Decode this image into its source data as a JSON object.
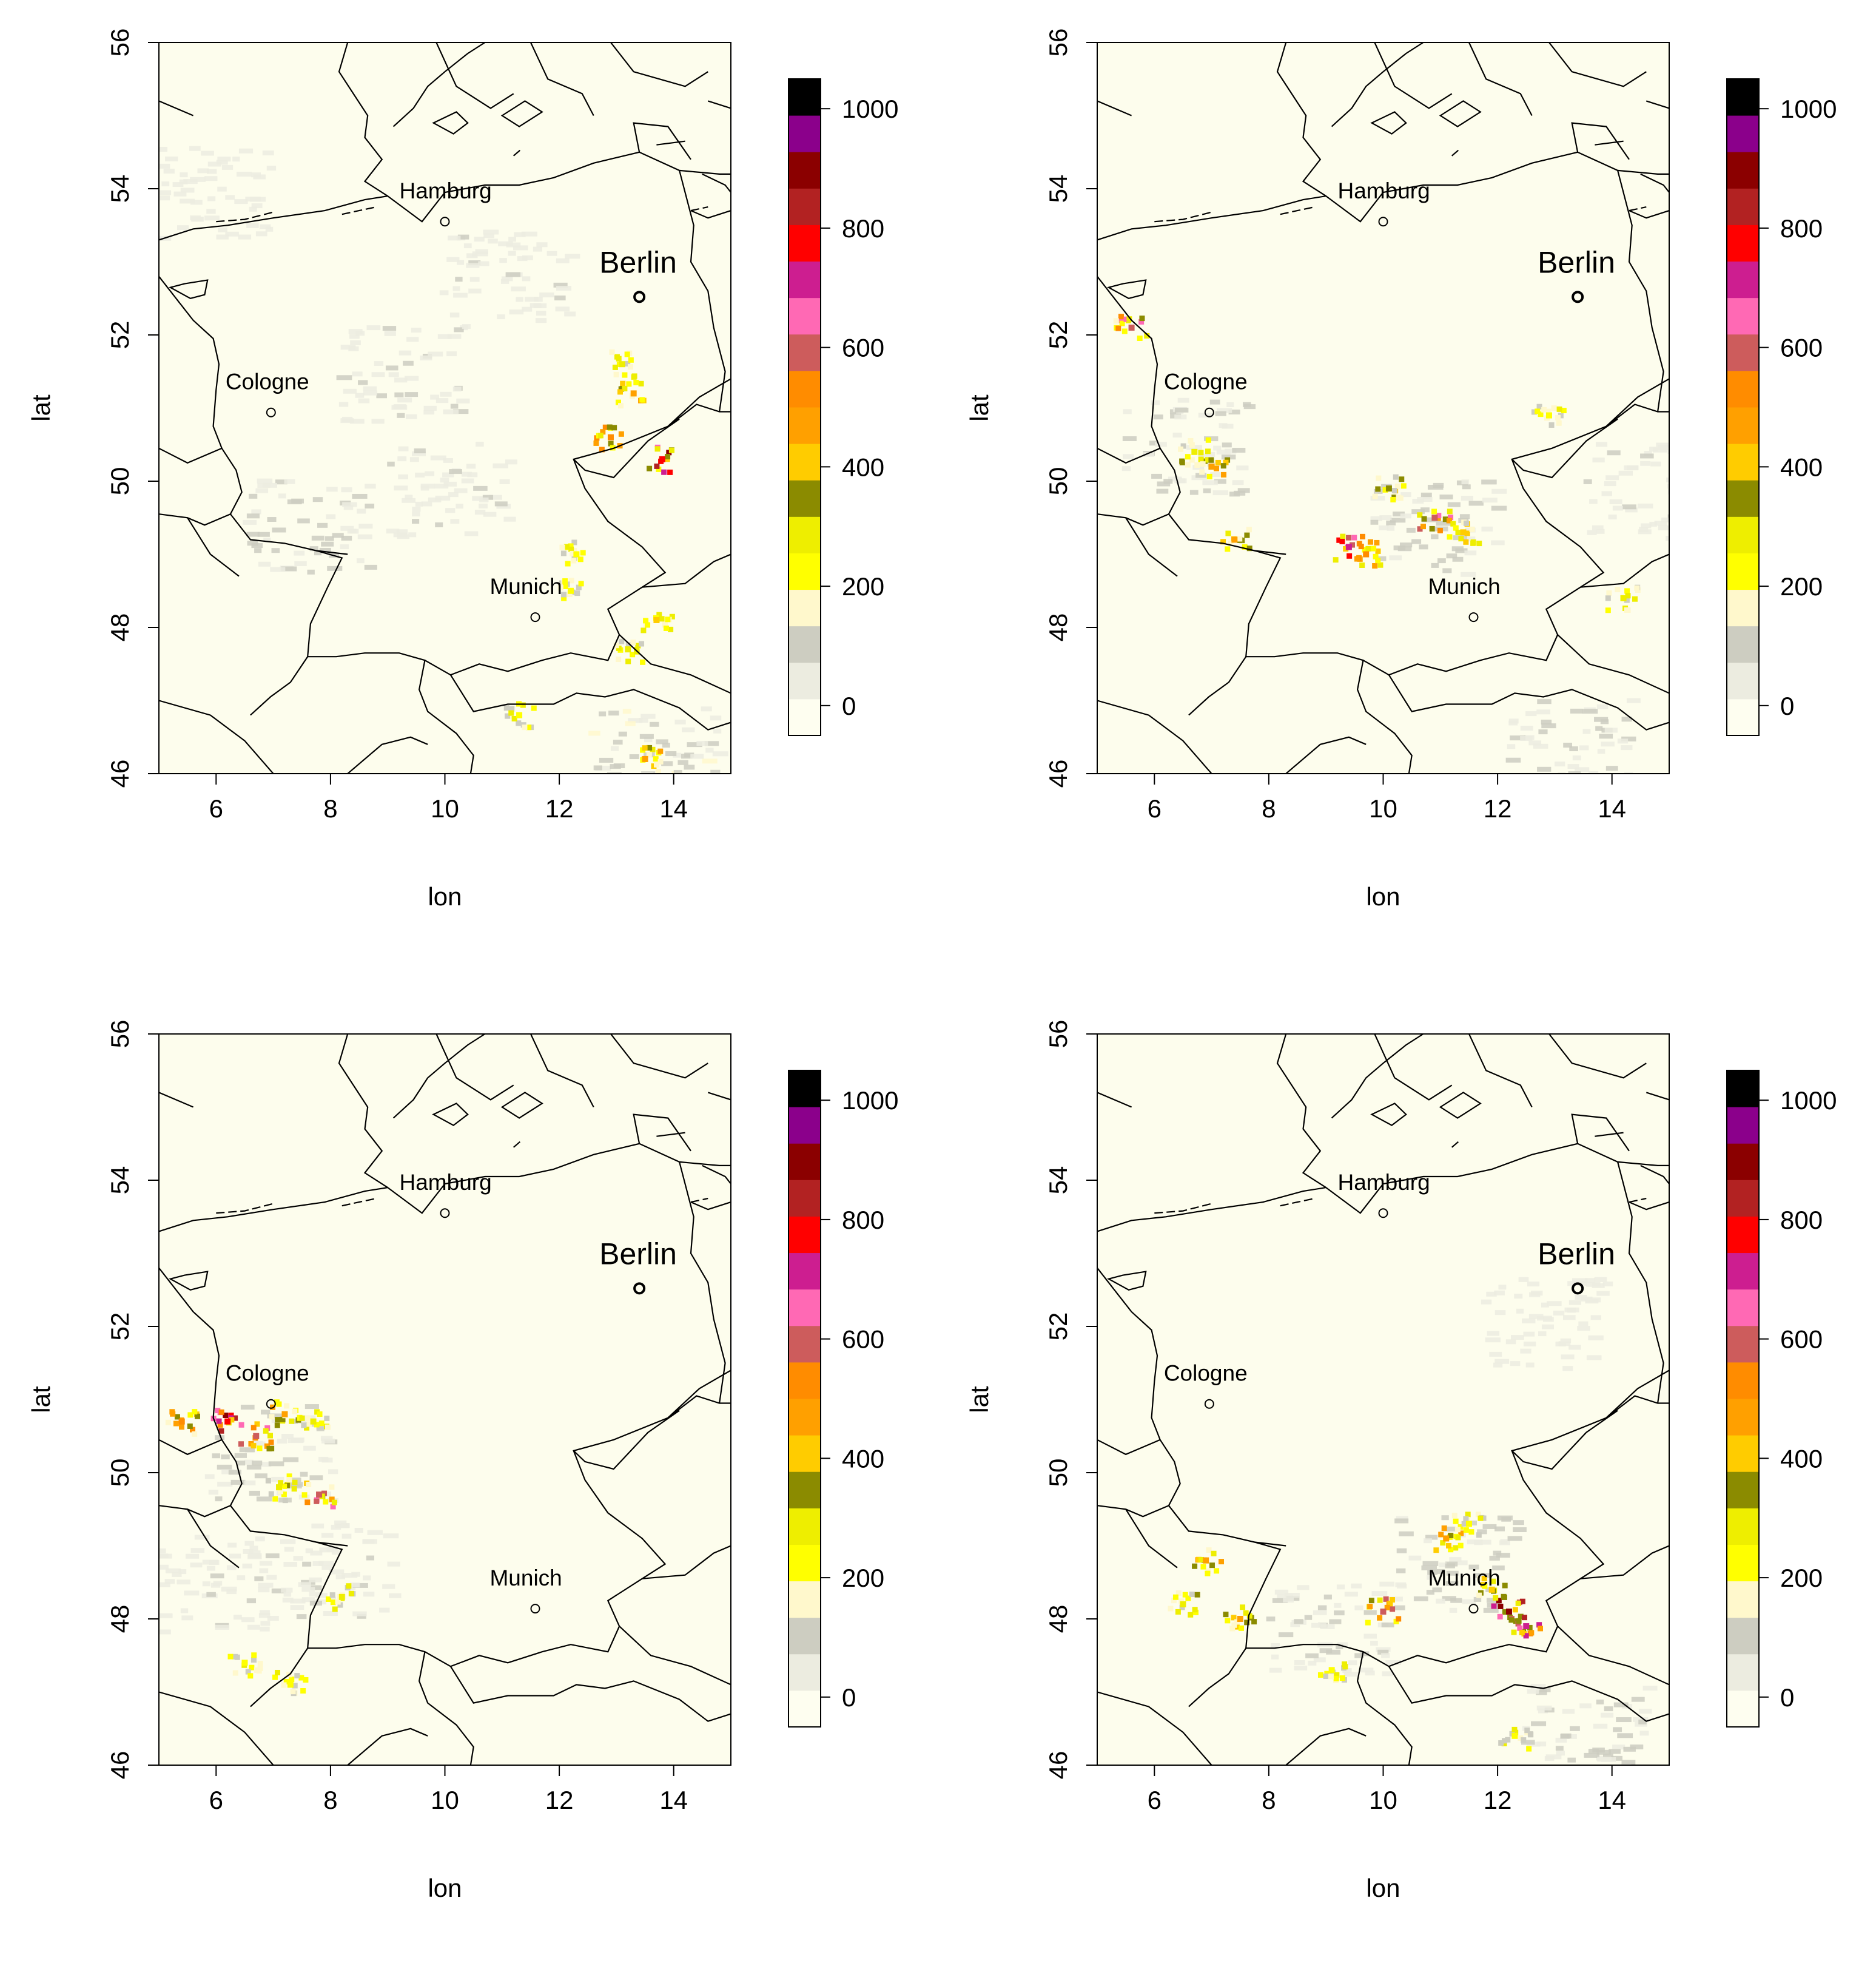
{
  "chart_data": [
    {
      "type": "heatmap",
      "xlabel": "lon",
      "ylabel": "lat",
      "xlim": [
        5,
        15
      ],
      "ylim": [
        46,
        56
      ],
      "x_ticks": [
        "6",
        "8",
        "10",
        "12",
        "14"
      ],
      "y_ticks": [
        "46",
        "48",
        "50",
        "52",
        "54",
        "56"
      ],
      "colorbar": {
        "ticks": [
          "0",
          "200",
          "400",
          "600",
          "800",
          "1000"
        ],
        "range": [
          -50,
          1050
        ]
      },
      "cities": [
        {
          "name": "Hamburg",
          "lon": 10.0,
          "lat": 53.55,
          "large": false
        },
        {
          "name": "Berlin",
          "lon": 13.4,
          "lat": 52.52,
          "large": true
        },
        {
          "name": "Cologne",
          "lon": 6.96,
          "lat": 50.94,
          "large": false
        },
        {
          "name": "Munich",
          "lon": 11.58,
          "lat": 48.14,
          "large": false
        }
      ],
      "hotspots": [
        {
          "lon": 13.1,
          "lat": 51.6,
          "value": 300
        },
        {
          "lon": 13.3,
          "lat": 51.2,
          "value": 450
        },
        {
          "lon": 12.9,
          "lat": 50.6,
          "value": 500
        },
        {
          "lon": 13.8,
          "lat": 50.3,
          "value": 800
        },
        {
          "lon": 13.2,
          "lat": 47.7,
          "value": 300
        },
        {
          "lon": 13.7,
          "lat": 48.1,
          "value": 400
        },
        {
          "lon": 12.2,
          "lat": 48.5,
          "value": 250
        },
        {
          "lon": 11.3,
          "lat": 46.8,
          "value": 250
        },
        {
          "lon": 13.5,
          "lat": 46.2,
          "value": 450
        },
        {
          "lon": 12.3,
          "lat": 49.0,
          "value": 250
        }
      ],
      "gray_bands": [
        {
          "lon": 7.5,
          "lat": 49.4,
          "value": 80
        },
        {
          "lon": 9.2,
          "lat": 51.5,
          "value": 70
        },
        {
          "lon": 11.0,
          "lat": 52.8,
          "value": 60
        },
        {
          "lon": 13.6,
          "lat": 46.4,
          "value": 110
        },
        {
          "lon": 10.0,
          "lat": 49.9,
          "value": 60
        },
        {
          "lon": 5.8,
          "lat": 54.0,
          "value": 50
        }
      ]
    },
    {
      "type": "heatmap",
      "xlabel": "lon",
      "ylabel": "lat",
      "xlim": [
        5,
        15
      ],
      "ylim": [
        46,
        56
      ],
      "x_ticks": [
        "6",
        "8",
        "10",
        "12",
        "14"
      ],
      "y_ticks": [
        "46",
        "48",
        "50",
        "52",
        "54",
        "56"
      ],
      "colorbar": {
        "ticks": [
          "0",
          "200",
          "400",
          "600",
          "800",
          "1000"
        ],
        "range": [
          -50,
          1050
        ]
      },
      "cities": [
        {
          "name": "Hamburg",
          "lon": 10.0,
          "lat": 53.55,
          "large": false
        },
        {
          "name": "Berlin",
          "lon": 13.4,
          "lat": 52.52,
          "large": true
        },
        {
          "name": "Cologne",
          "lon": 6.96,
          "lat": 50.94,
          "large": false
        },
        {
          "name": "Munich",
          "lon": 11.58,
          "lat": 48.14,
          "large": false
        }
      ],
      "hotspots": [
        {
          "lon": 5.6,
          "lat": 52.1,
          "value": 600
        },
        {
          "lon": 6.7,
          "lat": 50.4,
          "value": 300
        },
        {
          "lon": 7.0,
          "lat": 50.2,
          "value": 450
        },
        {
          "lon": 7.4,
          "lat": 49.2,
          "value": 450
        },
        {
          "lon": 9.4,
          "lat": 49.1,
          "value": 700
        },
        {
          "lon": 10.1,
          "lat": 49.9,
          "value": 350
        },
        {
          "lon": 10.9,
          "lat": 49.5,
          "value": 600
        },
        {
          "lon": 11.4,
          "lat": 49.3,
          "value": 400
        },
        {
          "lon": 9.7,
          "lat": 49.0,
          "value": 500
        },
        {
          "lon": 14.2,
          "lat": 48.4,
          "value": 300
        },
        {
          "lon": 12.9,
          "lat": 50.9,
          "value": 250
        }
      ],
      "gray_bands": [
        {
          "lon": 10.8,
          "lat": 49.4,
          "value": 90
        },
        {
          "lon": 6.5,
          "lat": 50.5,
          "value": 80
        },
        {
          "lon": 13.2,
          "lat": 46.4,
          "value": 90
        },
        {
          "lon": 14.6,
          "lat": 49.9,
          "value": 60
        }
      ]
    },
    {
      "type": "heatmap",
      "xlabel": "lon",
      "ylabel": "lat",
      "xlim": [
        5,
        15
      ],
      "ylim": [
        46,
        56
      ],
      "x_ticks": [
        "6",
        "8",
        "10",
        "12",
        "14"
      ],
      "y_ticks": [
        "46",
        "48",
        "50",
        "52",
        "54",
        "56"
      ],
      "colorbar": {
        "ticks": [
          "0",
          "200",
          "400",
          "600",
          "800",
          "1000"
        ],
        "range": [
          -50,
          1050
        ]
      },
      "cities": [
        {
          "name": "Hamburg",
          "lon": 10.0,
          "lat": 53.55,
          "large": false
        },
        {
          "name": "Berlin",
          "lon": 13.4,
          "lat": 52.52,
          "large": true
        },
        {
          "name": "Cologne",
          "lon": 6.96,
          "lat": 50.94,
          "large": false
        },
        {
          "name": "Munich",
          "lon": 11.58,
          "lat": 48.14,
          "large": false
        }
      ],
      "hotspots": [
        {
          "lon": 5.4,
          "lat": 50.7,
          "value": 500
        },
        {
          "lon": 6.2,
          "lat": 50.7,
          "value": 800
        },
        {
          "lon": 6.7,
          "lat": 50.5,
          "value": 600
        },
        {
          "lon": 7.2,
          "lat": 50.8,
          "value": 450
        },
        {
          "lon": 7.7,
          "lat": 50.7,
          "value": 300
        },
        {
          "lon": 7.1,
          "lat": 49.8,
          "value": 300
        },
        {
          "lon": 7.8,
          "lat": 49.7,
          "value": 600
        },
        {
          "lon": 8.2,
          "lat": 48.3,
          "value": 300
        },
        {
          "lon": 6.5,
          "lat": 47.4,
          "value": 250
        },
        {
          "lon": 7.3,
          "lat": 47.1,
          "value": 250
        }
      ],
      "gray_bands": [
        {
          "lon": 6.9,
          "lat": 50.3,
          "value": 90
        },
        {
          "lon": 6.0,
          "lat": 48.5,
          "value": 60
        },
        {
          "lon": 8.0,
          "lat": 48.7,
          "value": 60
        }
      ]
    },
    {
      "type": "heatmap",
      "xlabel": "lon",
      "ylabel": "lat",
      "xlim": [
        5,
        15
      ],
      "ylim": [
        46,
        56
      ],
      "x_ticks": [
        "6",
        "8",
        "10",
        "12",
        "14"
      ],
      "y_ticks": [
        "46",
        "48",
        "50",
        "52",
        "54",
        "56"
      ],
      "colorbar": {
        "ticks": [
          "0",
          "200",
          "400",
          "600",
          "800",
          "1000"
        ],
        "range": [
          -50,
          1050
        ]
      },
      "cities": [
        {
          "name": "Hamburg",
          "lon": 10.0,
          "lat": 53.55,
          "large": false
        },
        {
          "name": "Berlin",
          "lon": 13.4,
          "lat": 52.52,
          "large": true
        },
        {
          "name": "Cologne",
          "lon": 6.96,
          "lat": 50.94,
          "large": false
        },
        {
          "name": "Munich",
          "lon": 11.58,
          "lat": 48.14,
          "large": false
        }
      ],
      "hotspots": [
        {
          "lon": 12.2,
          "lat": 48.1,
          "value": 900
        },
        {
          "lon": 12.5,
          "lat": 47.9,
          "value": 700
        },
        {
          "lon": 11.9,
          "lat": 48.4,
          "value": 400
        },
        {
          "lon": 10.0,
          "lat": 48.1,
          "value": 600
        },
        {
          "lon": 11.1,
          "lat": 49.1,
          "value": 450
        },
        {
          "lon": 11.5,
          "lat": 49.3,
          "value": 250
        },
        {
          "lon": 7.5,
          "lat": 48.0,
          "value": 450
        },
        {
          "lon": 6.9,
          "lat": 48.8,
          "value": 450
        },
        {
          "lon": 6.5,
          "lat": 48.2,
          "value": 300
        },
        {
          "lon": 12.3,
          "lat": 46.4,
          "value": 250
        },
        {
          "lon": 9.1,
          "lat": 47.3,
          "value": 250
        }
      ],
      "gray_bands": [
        {
          "lon": 11.2,
          "lat": 48.8,
          "value": 90
        },
        {
          "lon": 9.0,
          "lat": 47.9,
          "value": 70
        },
        {
          "lon": 13.5,
          "lat": 46.5,
          "value": 80
        },
        {
          "lon": 12.8,
          "lat": 52.1,
          "value": 50
        }
      ]
    }
  ]
}
